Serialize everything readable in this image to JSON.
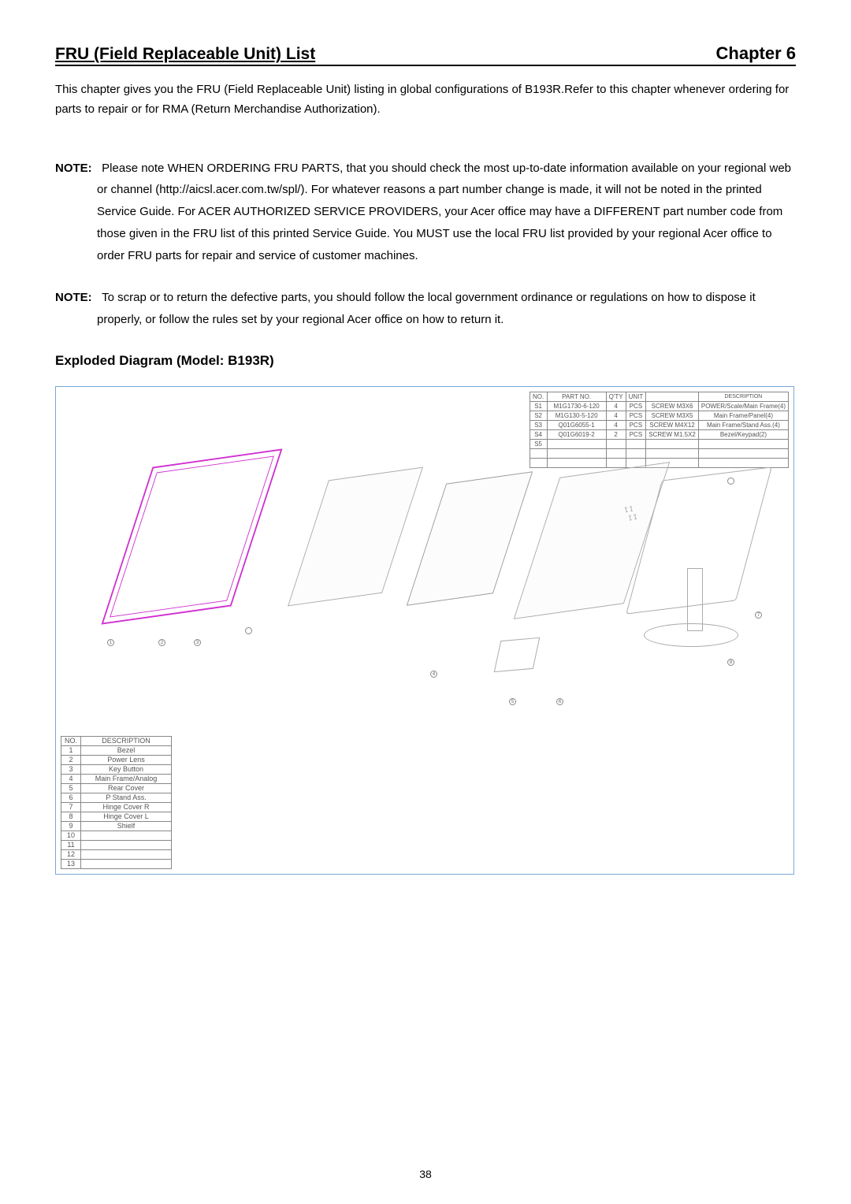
{
  "header": {
    "left": "FRU (Field Replaceable Unit) List",
    "right": "Chapter 6"
  },
  "intro": "This chapter gives you the FRU (Field Replaceable Unit) listing in global configurations of B193R.Refer to this chapter whenever ordering for parts to repair or for RMA (Return Merchandise Authorization).",
  "note1": {
    "label": "NOTE:",
    "text": "Please note WHEN ORDERING FRU PARTS, that you should check the most up-to-date information available on your regional web or channel (http://aicsl.acer.com.tw/spl/). For whatever reasons a part number change is made, it will not be noted in the printed Service Guide. For ACER AUTHORIZED SERVICE PROVIDERS, your Acer office may have a DIFFERENT part number code from those given in the FRU list of this printed Service Guide. You MUST use the local FRU list provided by your regional Acer office to order FRU parts for repair and service of customer machines."
  },
  "note2": {
    "label": "NOTE:",
    "text": "To scrap or to return the defective parts, you should follow the local government ordinance or regulations on how to dispose it properly, or follow the rules set by your regional Acer office on how to return it."
  },
  "subheading": "Exploded Diagram (Model: B193R)",
  "screw_table": {
    "headers": [
      "NO.",
      "PART NO.",
      "Q'TY",
      "UNIT",
      "",
      "DESCRIPTION"
    ],
    "rows": [
      [
        "S1",
        "M1G1730-6-120",
        "4",
        "PCS",
        "SCREW M3X6",
        "POWER/Scale/Main Frame(4)"
      ],
      [
        "S2",
        "M1G130-5-120",
        "4",
        "PCS",
        "SCREW M3X5",
        "Main Frame/Panel(4)"
      ],
      [
        "S3",
        "Q01G6055-1",
        "4",
        "PCS",
        "SCREW M4X12",
        "Main Frame/Stand Ass.(4)"
      ],
      [
        "S4",
        "Q01G6019-2",
        "2",
        "PCS",
        "SCREW M1.5X2",
        "Bezel/Keypad(2)"
      ],
      [
        "S5",
        "",
        "",
        "",
        "",
        ""
      ]
    ]
  },
  "desc_table": {
    "headers": [
      "NO.",
      "DESCRIPTION"
    ],
    "rows": [
      [
        "1",
        "Bezel"
      ],
      [
        "2",
        "Power Lens"
      ],
      [
        "3",
        "Key Button"
      ],
      [
        "4",
        "Main Frame/Analog"
      ],
      [
        "5",
        "Rear Cover"
      ],
      [
        "6",
        "P Stand Ass."
      ],
      [
        "7",
        "Hinge Cover R"
      ],
      [
        "8",
        "Hinge Cover L"
      ],
      [
        "9",
        "Shielf"
      ],
      [
        "10",
        ""
      ],
      [
        "11",
        ""
      ],
      [
        "12",
        ""
      ],
      [
        "13",
        ""
      ]
    ]
  },
  "page_number": "38",
  "colors": {
    "text": "#000000",
    "border_blue": "#7aa8d8",
    "bezel_magenta": "#d030d0",
    "sketch_gray": "#aaaaaa",
    "table_gray": "#888888"
  }
}
